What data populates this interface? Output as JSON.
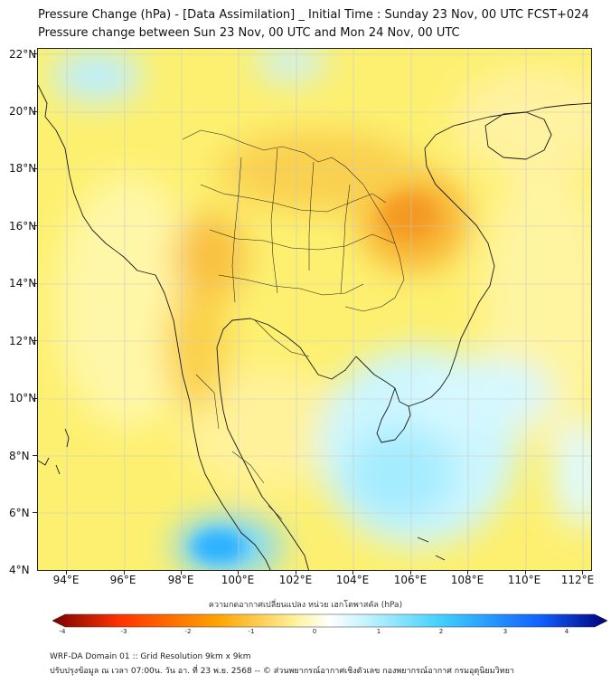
{
  "title_line1": "Pressure Change (hPa) - [Data Assimilation] _ Initial Time : Sunday 23 Nov, 00 UTC FCST+024",
  "title_line2": "Pressure change between Sun 23 Nov, 00 UTC and Mon 24 Nov, 00 UTC",
  "lat_labels": [
    "22°N",
    "20°N",
    "18°N",
    "16°N",
    "14°N",
    "12°N",
    "10°N",
    "8°N",
    "6°N",
    "4°N"
  ],
  "lon_labels": [
    "94°E",
    "96°E",
    "98°E",
    "100°E",
    "102°E",
    "104°E",
    "106°E",
    "108°E",
    "110°E",
    "112°E"
  ],
  "colorbar": {
    "label": "ความกดอากาศเปลี่ยนแปลง หน่วย เฮกโตพาสคัล (hPa)",
    "ticks": [
      "-4",
      "-3",
      "-2",
      "-1",
      "0",
      "1",
      "2",
      "3",
      "4"
    ],
    "colors": {
      "neg_strong": "#7a0000",
      "neg_mid": "#ff3300",
      "neg_weak": "#ffa500",
      "neg_light": "#fff3a0",
      "zero": "#ffffff",
      "pos_light": "#c8f4ff",
      "pos_weak": "#40d0ff",
      "pos_mid": "#1060ff",
      "pos_strong": "#00007a"
    }
  },
  "footer_line1": "WRF-DA Domain 01 :: Grid Resolution 9km x 9km",
  "footer_line2": "ปรับปรุงข้อมูล ณ เวลา 07:00น. วัน อา. ที่ 23 พ.ย. 2568 -- © ส่วนพยากรณ์อากาศเชิงตัวเลข กองพยากรณ์อากาศ กรมอุตุนิยมวิทยา"
}
